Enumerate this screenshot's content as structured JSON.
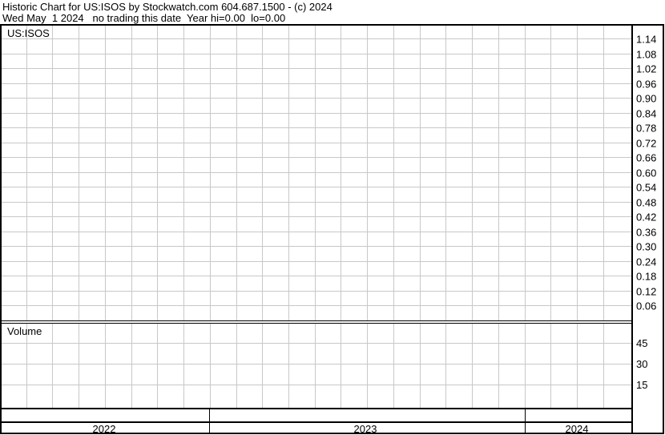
{
  "header": {
    "line1": "Historic Chart for US:ISOS by Stockwatch.com 604.687.1500 - (c) 2024",
    "line2": "Wed May  1 2024   no trading this date  Year hi=0.00  lo=0.00"
  },
  "chart_data": [
    {
      "type": "line",
      "title": "US:ISOS",
      "series": [],
      "y_ticks": [
        "1.14",
        "1.08",
        "1.02",
        "0.96",
        "0.90",
        "0.84",
        "0.78",
        "0.72",
        "0.66",
        "0.60",
        "0.54",
        "0.48",
        "0.42",
        "0.36",
        "0.30",
        "0.24",
        "0.18",
        "0.12",
        "0.06"
      ],
      "grid": true,
      "y_axis_side": "right"
    },
    {
      "type": "bar",
      "title": "Volume",
      "series": [],
      "y_ticks": [
        "45",
        "30",
        "15"
      ],
      "grid": true,
      "y_axis_side": "right"
    }
  ],
  "x_axis": {
    "years": [
      "2022",
      "2023",
      "2024"
    ]
  },
  "colors": {
    "grid": "#c8c8c8",
    "border": "#000000",
    "background": "#ffffff"
  }
}
